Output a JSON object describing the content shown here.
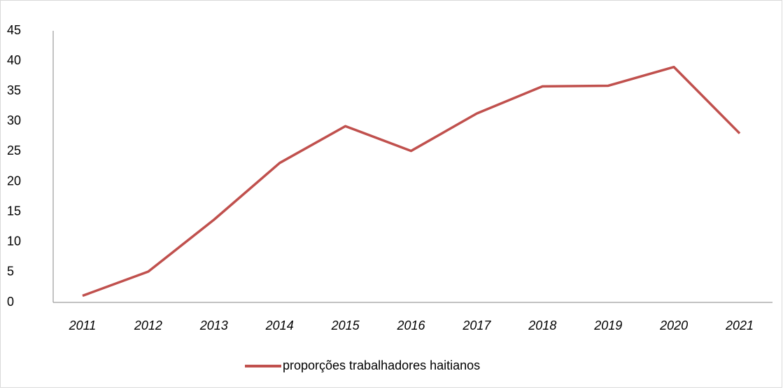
{
  "chart_data": {
    "type": "line",
    "categories": [
      "2011",
      "2012",
      "2013",
      "2014",
      "2015",
      "2016",
      "2017",
      "2018",
      "2019",
      "2020",
      "2021"
    ],
    "series": [
      {
        "name": "proporções trabalhadores haitianos",
        "color": "#c0504d",
        "values": [
          1.1,
          5.1,
          13.7,
          23.1,
          29.2,
          25.1,
          31.3,
          35.8,
          35.9,
          39.0,
          28.0
        ]
      }
    ],
    "ylim": [
      0,
      45
    ],
    "yticks": [
      0,
      5,
      10,
      15,
      20,
      25,
      30,
      35,
      40,
      45
    ],
    "grid": false,
    "legend": "bottom"
  }
}
